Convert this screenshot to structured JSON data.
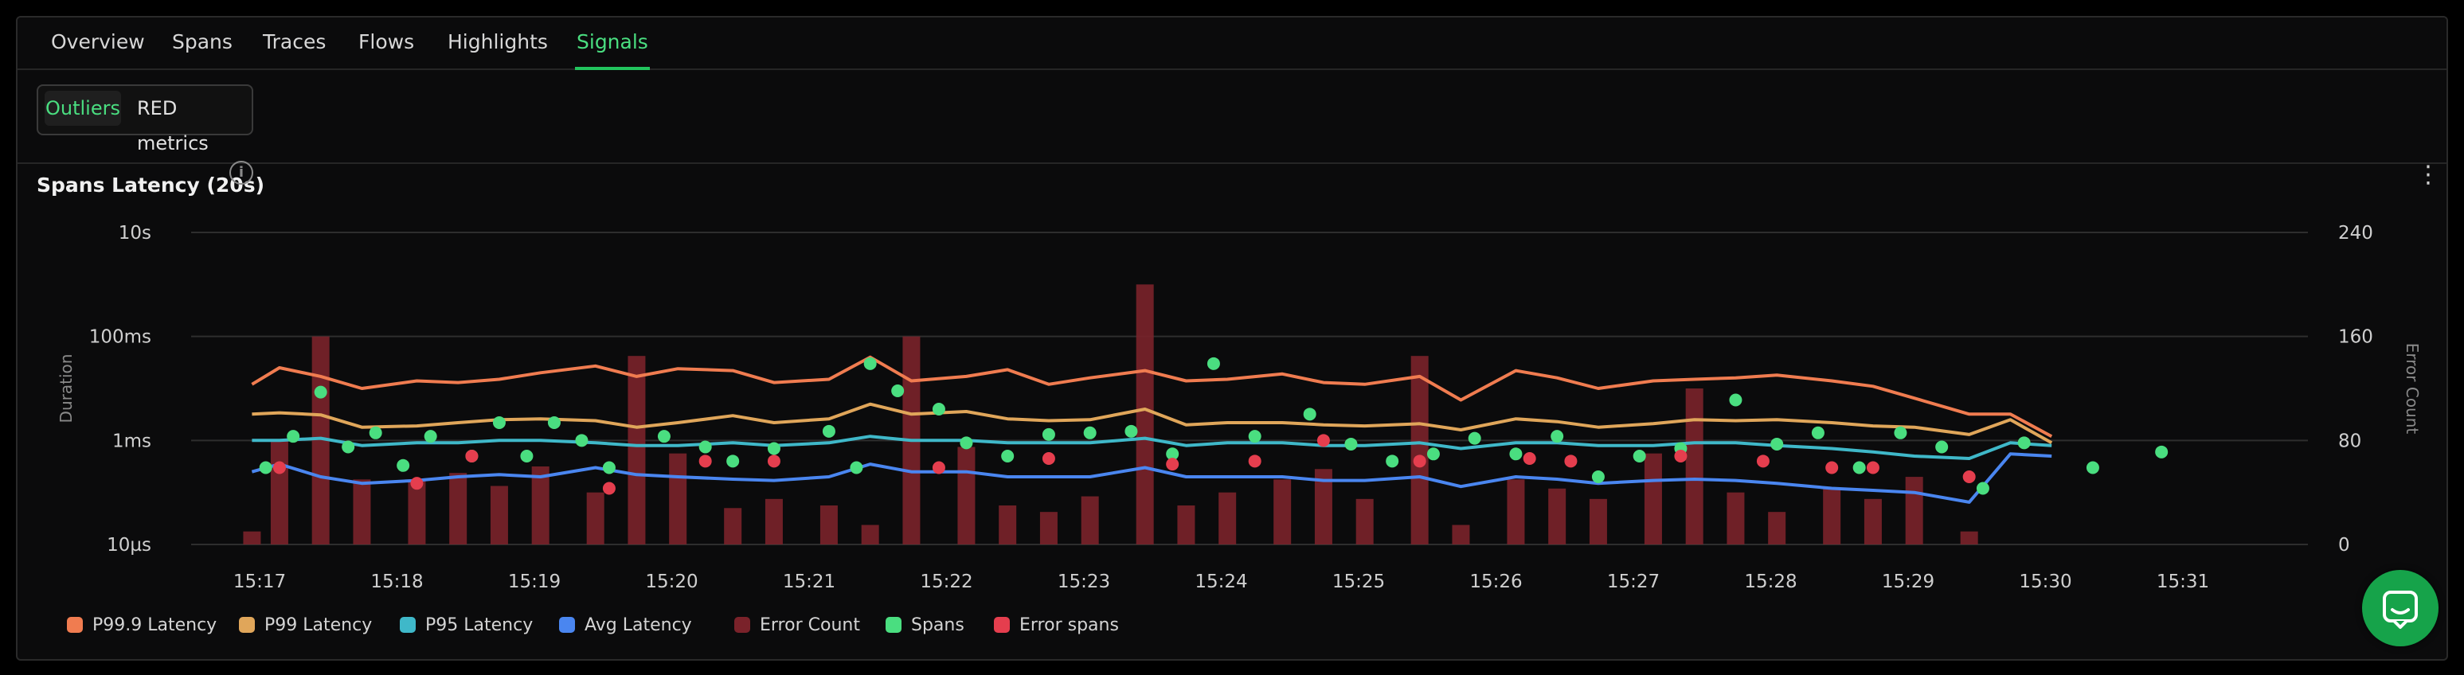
{
  "tabs": [
    {
      "label": "Overview"
    },
    {
      "label": "Spans"
    },
    {
      "label": "Traces"
    },
    {
      "label": "Flows"
    },
    {
      "label": "Highlights"
    },
    {
      "label": "Signals",
      "active": true
    }
  ],
  "segmented": {
    "outliers_label": "Outliers",
    "red_label": "RED metrics",
    "active": "Outliers"
  },
  "panel": {
    "title": "Spans Latency (20s)",
    "info_icon": "info-icon",
    "menu_icon": "kebab-menu-icon"
  },
  "colors": {
    "p999": "#f07c50",
    "p99": "#e0a65a",
    "p95": "#3fb8c9",
    "avg": "#4a86f0",
    "error_count": "#7a222a",
    "spans": "#4ade80",
    "error_spans": "#e53e4e",
    "accent": "#22c55e"
  },
  "chart_data": {
    "type": "line",
    "ylabel": "Duration",
    "y2label": "Error Count",
    "y_scale": "log",
    "y_ticks": [
      "10s",
      "100ms",
      "1ms",
      "10µs"
    ],
    "y_tick_values_ms": [
      10000,
      100,
      1,
      0.01
    ],
    "y2_ticks": [
      240,
      160,
      80,
      0
    ],
    "y2lim": [
      0,
      240
    ],
    "x_ticks": [
      "15:17",
      "15:18",
      "15:19",
      "15:20",
      "15:21",
      "15:22",
      "15:23",
      "15:24",
      "15:25",
      "15:26",
      "15:27",
      "15:28",
      "15:29",
      "15:30",
      "15:31"
    ],
    "grid": true,
    "legend_position": "bottom-left",
    "x_minutes": [
      16.8,
      17.0,
      17.3,
      17.6,
      18.0,
      18.3,
      18.6,
      18.9,
      19.3,
      19.6,
      19.9,
      20.3,
      20.6,
      21.0,
      21.3,
      21.6,
      22.0,
      22.3,
      22.6,
      22.9,
      23.3,
      23.6,
      23.9,
      24.3,
      24.6,
      24.9,
      25.3,
      25.6,
      26.0,
      26.3,
      26.6,
      27.0,
      27.3,
      27.6,
      27.9,
      28.3,
      28.6,
      28.9,
      29.3,
      29.6,
      29.9
    ],
    "series": [
      {
        "name": "P99.9 Latency",
        "type": "line",
        "values_ms": [
          12,
          25,
          17,
          10,
          14,
          13,
          15,
          20,
          27,
          17,
          24,
          22,
          13,
          15,
          40,
          14,
          17,
          23,
          12,
          16,
          22,
          14,
          15,
          19,
          13,
          12,
          17,
          6,
          22,
          16,
          10,
          14,
          15,
          16,
          18,
          14,
          11,
          6.5,
          3.2,
          3.2,
          1.2
        ]
      },
      {
        "name": "P99 Latency",
        "type": "line",
        "values_ms": [
          3.2,
          3.4,
          3.1,
          1.8,
          1.9,
          2.2,
          2.5,
          2.6,
          2.4,
          1.8,
          2.2,
          3.0,
          2.2,
          2.6,
          5.0,
          3.2,
          3.6,
          2.6,
          2.4,
          2.5,
          4.0,
          2.0,
          2.2,
          2.2,
          2.0,
          1.9,
          2.1,
          1.6,
          2.6,
          2.3,
          1.8,
          2.1,
          2.5,
          2.4,
          2.5,
          2.2,
          1.9,
          1.8,
          1.3,
          2.5,
          0.9
        ]
      },
      {
        "name": "P95 Latency",
        "type": "line",
        "values_ms": [
          1.0,
          1.0,
          1.1,
          0.8,
          0.9,
          0.9,
          1.0,
          1.0,
          0.9,
          0.8,
          0.8,
          0.9,
          0.8,
          0.9,
          1.2,
          1.0,
          1.0,
          0.9,
          0.9,
          0.9,
          1.1,
          0.8,
          0.9,
          0.9,
          0.8,
          0.8,
          0.9,
          0.7,
          0.9,
          0.9,
          0.8,
          0.8,
          0.9,
          0.9,
          0.8,
          0.7,
          0.6,
          0.5,
          0.45,
          0.9,
          0.8
        ]
      },
      {
        "name": "Avg Latency",
        "type": "line",
        "values_ms": [
          0.25,
          0.35,
          0.2,
          0.15,
          0.17,
          0.2,
          0.22,
          0.2,
          0.3,
          0.22,
          0.2,
          0.18,
          0.17,
          0.2,
          0.35,
          0.25,
          0.25,
          0.2,
          0.2,
          0.2,
          0.3,
          0.2,
          0.2,
          0.2,
          0.17,
          0.17,
          0.2,
          0.13,
          0.2,
          0.18,
          0.15,
          0.17,
          0.18,
          0.17,
          0.15,
          0.12,
          0.11,
          0.1,
          0.065,
          0.55,
          0.5
        ]
      },
      {
        "name": "Error Count",
        "type": "bar",
        "axis": "y2",
        "values": [
          10,
          80,
          160,
          50,
          50,
          55,
          45,
          60,
          40,
          145,
          70,
          28,
          35,
          30,
          15,
          160,
          75,
          30,
          25,
          37,
          200,
          30,
          40,
          50,
          58,
          35,
          145,
          15,
          50,
          43,
          35,
          70,
          120,
          40,
          25,
          43,
          35,
          52,
          10,
          0,
          0
        ]
      }
    ],
    "scatter": [
      {
        "name": "Spans",
        "points_ms": [
          [
            16.9,
            0.3
          ],
          [
            17.1,
            1.2
          ],
          [
            17.3,
            8.5
          ],
          [
            17.5,
            0.75
          ],
          [
            17.7,
            1.4
          ],
          [
            17.9,
            0.33
          ],
          [
            18.1,
            1.2
          ],
          [
            18.4,
            0.5
          ],
          [
            18.6,
            2.2
          ],
          [
            18.8,
            0.5
          ],
          [
            19.0,
            2.2
          ],
          [
            19.2,
            1.0
          ],
          [
            19.4,
            0.3
          ],
          [
            19.8,
            1.2
          ],
          [
            20.1,
            0.75
          ],
          [
            20.3,
            0.4
          ],
          [
            20.6,
            0.7
          ],
          [
            21.0,
            1.5
          ],
          [
            21.2,
            0.3
          ],
          [
            21.3,
            30
          ],
          [
            21.5,
            9
          ],
          [
            21.8,
            4
          ],
          [
            22.0,
            0.9
          ],
          [
            22.3,
            0.5
          ],
          [
            22.6,
            1.3
          ],
          [
            22.9,
            1.4
          ],
          [
            23.2,
            1.5
          ],
          [
            23.5,
            0.55
          ],
          [
            23.8,
            30
          ],
          [
            24.1,
            1.2
          ],
          [
            24.5,
            3.2
          ],
          [
            24.8,
            0.85
          ],
          [
            25.1,
            0.4
          ],
          [
            25.4,
            0.55
          ],
          [
            25.7,
            1.1
          ],
          [
            26.0,
            0.55
          ],
          [
            26.3,
            1.2
          ],
          [
            26.6,
            0.2
          ],
          [
            26.9,
            0.5
          ],
          [
            27.2,
            0.7
          ],
          [
            27.6,
            6
          ],
          [
            27.9,
            0.85
          ],
          [
            28.2,
            1.4
          ],
          [
            28.5,
            0.3
          ],
          [
            28.8,
            1.4
          ],
          [
            29.1,
            0.75
          ],
          [
            29.4,
            0.12
          ],
          [
            29.7,
            0.9
          ],
          [
            30.2,
            0.3
          ],
          [
            30.7,
            0.6
          ]
        ]
      },
      {
        "name": "Error spans",
        "points_ms": [
          [
            17.0,
            0.3
          ],
          [
            18.0,
            0.15
          ],
          [
            18.4,
            0.5
          ],
          [
            19.4,
            0.12
          ],
          [
            20.1,
            0.4
          ],
          [
            20.6,
            0.4
          ],
          [
            21.8,
            0.3
          ],
          [
            22.6,
            0.45
          ],
          [
            23.5,
            0.35
          ],
          [
            24.1,
            0.4
          ],
          [
            24.6,
            1.0
          ],
          [
            25.3,
            0.4
          ],
          [
            26.1,
            0.45
          ],
          [
            26.4,
            0.4
          ],
          [
            27.2,
            0.5
          ],
          [
            27.8,
            0.4
          ],
          [
            28.3,
            0.3
          ],
          [
            28.6,
            0.3
          ],
          [
            29.3,
            0.2
          ]
        ]
      }
    ]
  },
  "legend": [
    {
      "label": "P99.9 Latency",
      "color": "#f07c50"
    },
    {
      "label": "P99 Latency",
      "color": "#e0a65a"
    },
    {
      "label": "P95 Latency",
      "color": "#3fb8c9"
    },
    {
      "label": "Avg Latency",
      "color": "#4a86f0"
    },
    {
      "label": "Error Count",
      "color": "#7a222a"
    },
    {
      "label": "Spans",
      "color": "#4ade80"
    },
    {
      "label": "Error spans",
      "color": "#e53e4e"
    }
  ],
  "chat": {
    "icon": "chat-bubble-icon"
  }
}
